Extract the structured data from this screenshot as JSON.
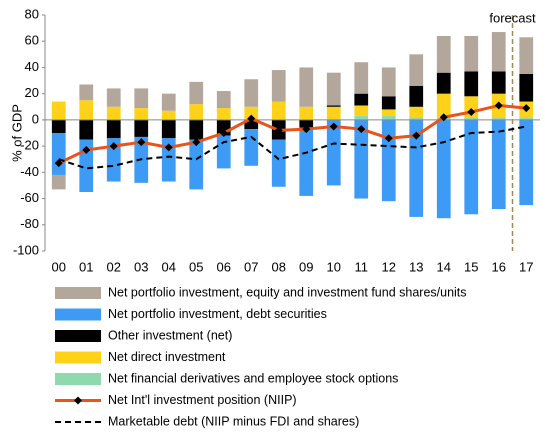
{
  "chart_data": {
    "type": "bar",
    "y_label": "% of GDP",
    "annotation": "forecast",
    "categories": [
      "00",
      "01",
      "02",
      "03",
      "04",
      "05",
      "06",
      "07",
      "08",
      "09",
      "10",
      "11",
      "12",
      "13",
      "14",
      "15",
      "16",
      "17"
    ],
    "ylim": [
      -100,
      80
    ],
    "yticks": [
      -100,
      -80,
      -60,
      -40,
      -20,
      0,
      20,
      40,
      60,
      80
    ],
    "series": [
      {
        "name": "Net portfolio investment, equity and investment fund shares/units",
        "type": "bar",
        "color": "#b3a69b",
        "values": [
          -11,
          12,
          14,
          15,
          13,
          17,
          13,
          21,
          24,
          30,
          25,
          24,
          22,
          24,
          28,
          27,
          30,
          28
        ]
      },
      {
        "name": "Net portfolio investment, debt securities",
        "type": "bar",
        "color": "#3d9bf5",
        "values": [
          -32,
          -40,
          -33,
          -35,
          -33,
          -38,
          -25,
          -28,
          -36,
          -52,
          -50,
          -60,
          -62,
          -74,
          -75,
          -72,
          -68,
          -65
        ]
      },
      {
        "name": "Other investment (net)",
        "type": "bar",
        "color": "#000000",
        "values": [
          -10,
          -15,
          -14,
          -13,
          -14,
          -15,
          -12,
          -7,
          -15,
          -6,
          1,
          9,
          10,
          16,
          16,
          19,
          17,
          21
        ]
      },
      {
        "name": "Net direct investment",
        "type": "bar",
        "color": "#ffd21a",
        "values": [
          14,
          15,
          10,
          9,
          7,
          12,
          9,
          10,
          14,
          10,
          10,
          8,
          5,
          8,
          18,
          16,
          18,
          12
        ]
      },
      {
        "name": "Net financial derivatives and employee stock options",
        "type": "bar",
        "color": "#8fd9ae",
        "values": [
          0,
          0,
          0,
          0,
          0,
          0,
          0,
          0,
          0,
          0,
          0,
          3,
          3,
          2,
          2,
          2,
          2,
          2
        ]
      },
      {
        "name": "Net Int'l investment position (NIIP)",
        "type": "line",
        "color": "#e8541c",
        "marker": true,
        "values": [
          -33,
          -23,
          -20,
          -17,
          -21,
          -17,
          -10,
          1,
          -8,
          -7,
          -5,
          -7,
          -14,
          -12,
          2,
          6,
          11,
          9
        ]
      },
      {
        "name": "Marketable debt (NIIP minus FDI and shares)",
        "type": "line",
        "color": "#000000",
        "dash": true,
        "values": [
          -30,
          -37,
          -35,
          -30,
          -28,
          -30,
          -17,
          -13,
          -30,
          -25,
          -18,
          -19,
          -20,
          -21,
          -17,
          -10,
          -9,
          -5
        ]
      }
    ]
  }
}
